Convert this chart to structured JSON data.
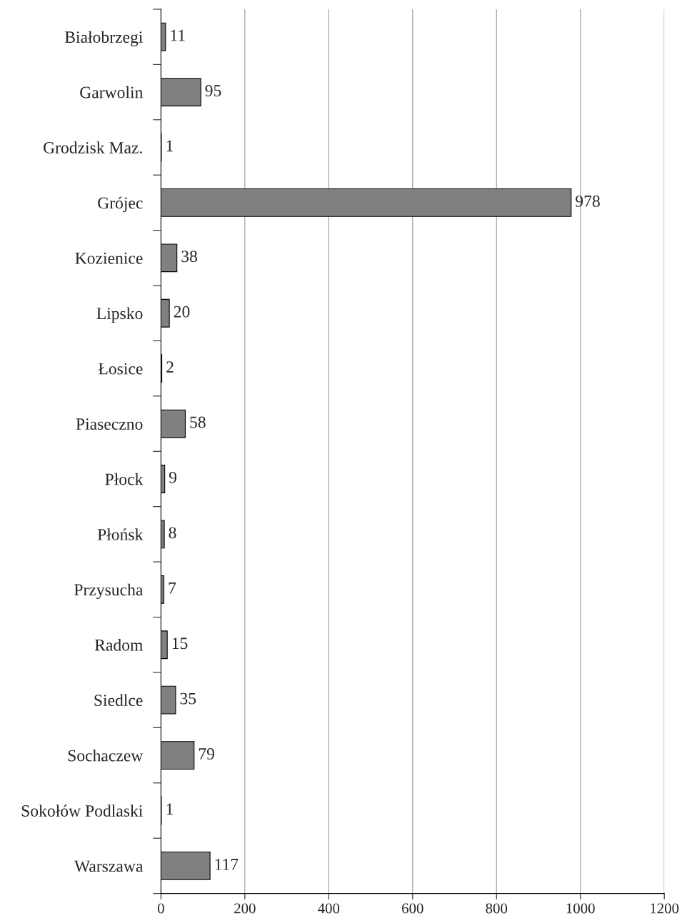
{
  "chart_data": {
    "type": "bar",
    "orientation": "horizontal",
    "categories": [
      "Białobrzegi",
      "Garwolin",
      "Grodzisk Maz.",
      "Grójec",
      "Kozienice",
      "Lipsko",
      "Łosice",
      "Piaseczno",
      "Płock",
      "Płońsk",
      "Przysucha",
      "Radom",
      "Siedlce",
      "Sochaczew",
      "Sokołów Podlaski",
      "Warszawa"
    ],
    "values": [
      11,
      95,
      1,
      978,
      38,
      20,
      2,
      58,
      9,
      8,
      7,
      15,
      35,
      79,
      1,
      117
    ],
    "color": "#808080",
    "xlim": [
      0,
      1200
    ],
    "xticks": [
      0,
      200,
      400,
      600,
      800,
      1000,
      1200
    ],
    "grid": "x",
    "data_labels": true
  }
}
